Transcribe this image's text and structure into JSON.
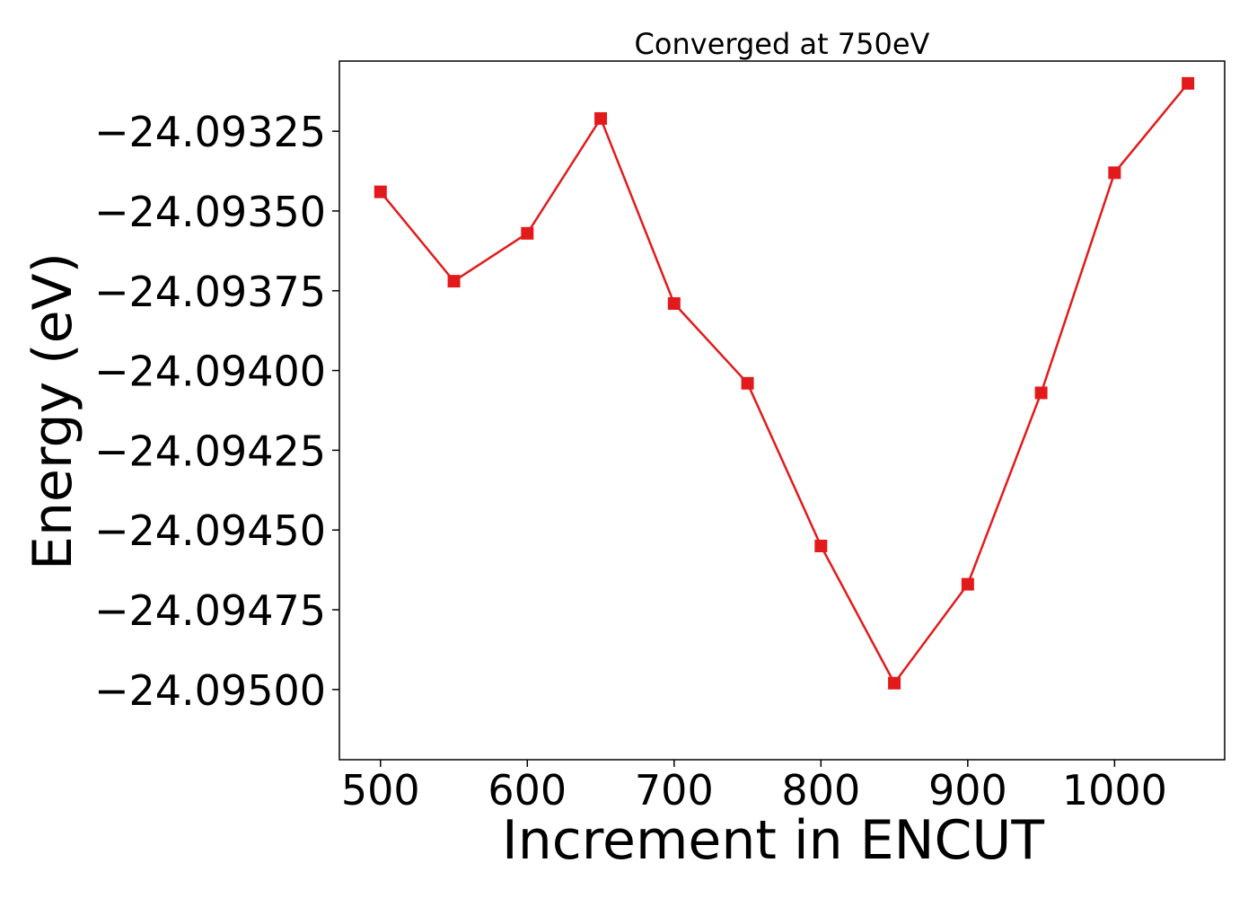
{
  "chart_data": {
    "type": "line",
    "title": "Converged at 750eV",
    "xlabel": "Increment in ENCUT",
    "ylabel": "Energy (eV)",
    "xlim": [
      472,
      1075
    ],
    "ylim": [
      -24.09522,
      -24.09303
    ],
    "x_ticks": [
      500,
      600,
      700,
      800,
      900,
      1000
    ],
    "x_tick_labels": [
      "500",
      "600",
      "700",
      "800",
      "900",
      "1000"
    ],
    "y_ticks": [
      -24.09325,
      -24.0935,
      -24.09375,
      -24.094,
      -24.09425,
      -24.0945,
      -24.09475,
      -24.095
    ],
    "y_tick_labels": [
      "−24.09325",
      "−24.09350",
      "−24.09375",
      "−24.09400",
      "−24.09425",
      "−24.09450",
      "−24.09475",
      "−24.09500"
    ],
    "grid": false,
    "legend": "none",
    "marker": "square",
    "series": [
      {
        "color": "#e31a1c",
        "x": [
          500,
          550,
          600,
          650,
          700,
          750,
          800,
          850,
          900,
          950,
          1000,
          1050
        ],
        "y": [
          -24.09344,
          -24.09372,
          -24.09357,
          -24.09321,
          -24.09379,
          -24.09404,
          -24.09455,
          -24.09498,
          -24.09467,
          -24.09407,
          -24.09338,
          -24.0931
        ]
      }
    ]
  }
}
